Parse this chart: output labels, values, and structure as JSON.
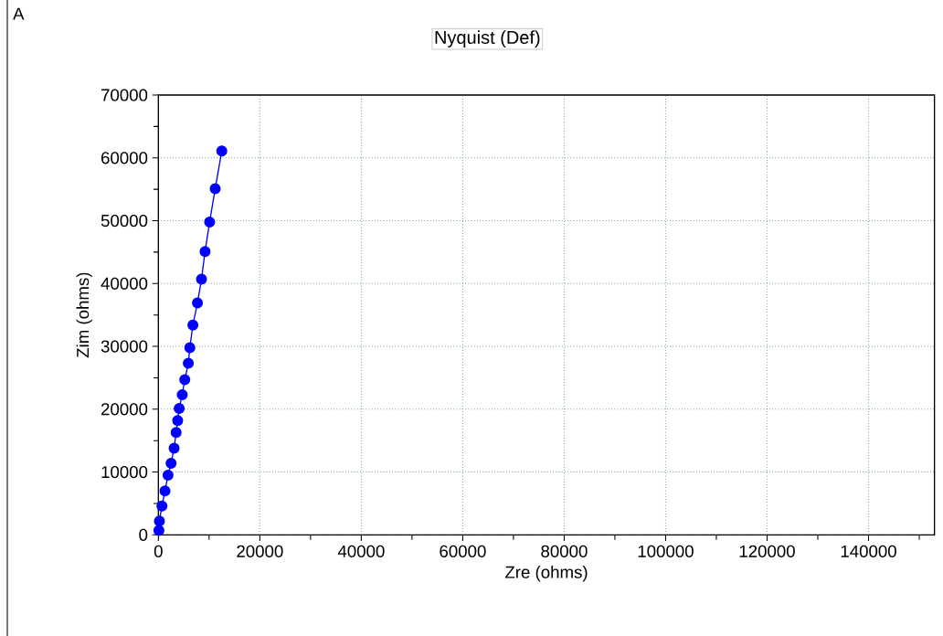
{
  "chart_data": {
    "type": "line",
    "title": "Nyquist (Def)",
    "xlabel": "Zre (ohms)",
    "ylabel": "Zim (ohms)",
    "annotations": [
      "A"
    ],
    "xlim": [
      0,
      153000
    ],
    "ylim": [
      0,
      70000
    ],
    "xticks": [
      0,
      {
        "value": 10000,
        "label": null
      },
      20000,
      {
        "value": 30000,
        "label": null
      },
      40000,
      {
        "value": 50000,
        "label": null
      },
      60000,
      {
        "value": 70000,
        "label": null
      },
      80000,
      {
        "value": 90000,
        "label": null
      },
      100000,
      {
        "value": 110000,
        "label": null
      },
      120000,
      {
        "value": 130000,
        "label": null
      },
      140000,
      {
        "value": 150000,
        "label": null
      }
    ],
    "yticks": [
      0,
      {
        "value": 5000,
        "label": null
      },
      10000,
      {
        "value": 15000,
        "label": null
      },
      20000,
      {
        "value": 25000,
        "label": null
      },
      30000,
      {
        "value": 35000,
        "label": null
      },
      40000,
      {
        "value": 45000,
        "label": null
      },
      50000,
      {
        "value": 55000,
        "label": null
      },
      60000,
      {
        "value": 65000,
        "label": null
      },
      70000
    ],
    "grid": true,
    "marker": "circle",
    "line_style": "solid",
    "series": [
      {
        "color": "#0000ff",
        "x": [
          100,
          200,
          700,
          1300,
          1900,
          2500,
          3100,
          3500,
          3800,
          4100,
          4700,
          5200,
          5900,
          6200,
          6800,
          7700,
          8500,
          9200,
          10100,
          11200,
          12500
        ],
        "values": [
          700,
          2200,
          4600,
          7000,
          9500,
          11400,
          13800,
          16300,
          18200,
          20100,
          22300,
          24700,
          27300,
          29800,
          33400,
          36900,
          40700,
          45100,
          49800,
          55100,
          61100
        ]
      }
    ]
  }
}
